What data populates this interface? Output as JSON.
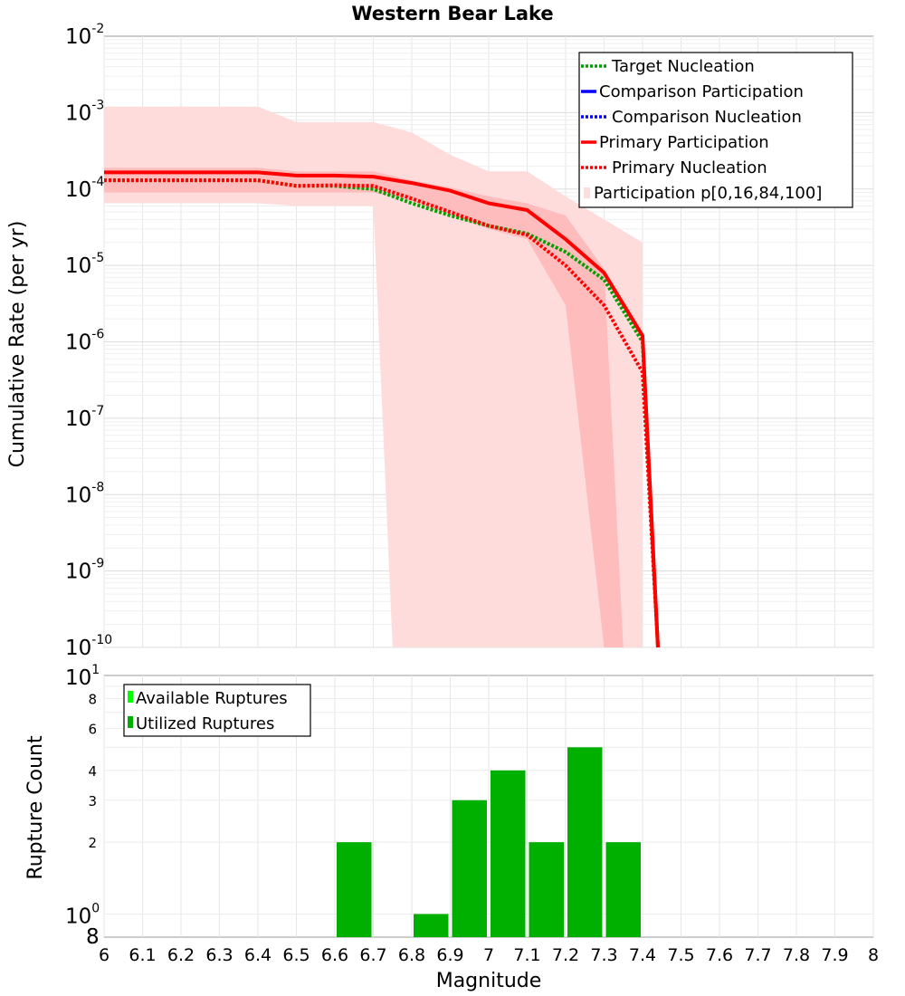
{
  "chart_data": [
    {
      "type": "line",
      "title": "Western Bear Lake",
      "xlabel": "Magnitude",
      "ylabel": "Cumulative Rate (per yr)",
      "yscale": "log",
      "xlim": [
        6,
        8
      ],
      "ylim": [
        1e-10,
        0.01
      ],
      "y_ticks": [
        {
          "base": "10",
          "exp": "-10"
        },
        {
          "base": "10",
          "exp": "-9"
        },
        {
          "base": "10",
          "exp": "-8"
        },
        {
          "base": "10",
          "exp": "-7"
        },
        {
          "base": "10",
          "exp": "-6"
        },
        {
          "base": "10",
          "exp": "-5"
        },
        {
          "base": "10",
          "exp": "-4"
        },
        {
          "base": "10",
          "exp": "-3"
        },
        {
          "base": "10",
          "exp": "-2"
        }
      ],
      "legend_position": "top-right",
      "legend": [
        "Target Nucleation",
        "Comparison Participation",
        "Comparison Nucleation",
        "Primary Participation",
        "Primary Nucleation",
        "Participation p[0,16,84,100]"
      ],
      "colors": {
        "target": "#00a000",
        "comparison": "#0000ff",
        "primary": "#ff0000",
        "band_outer": "#ffdcdc",
        "band_inner": "#ffbcbc"
      },
      "bands": {
        "outer": {
          "x": [
            6.0,
            6.4,
            6.5,
            6.7,
            6.8,
            6.9,
            7.0,
            7.1,
            7.2,
            7.3,
            7.4,
            7.4001
          ],
          "upper": [
            0.0012,
            0.0012,
            0.00075,
            0.00075,
            0.00055,
            0.00028,
            0.00017,
            0.00017,
            8e-05,
            4e-05,
            2e-05,
            1e-10
          ],
          "lower": [
            6.5e-05,
            6.5e-05,
            6e-05,
            6e-05,
            1e-10,
            1e-10,
            1e-10,
            1e-10,
            1e-10,
            1e-10,
            1e-10,
            1e-10
          ],
          "lower_drop_x": [
            6.7,
            6.75
          ]
        },
        "inner": {
          "x": [
            6.0,
            6.4,
            6.5,
            6.7,
            6.8,
            6.9,
            7.0,
            7.1,
            7.2,
            7.3,
            7.35
          ],
          "upper": [
            0.00019,
            0.00019,
            0.00017,
            0.00017,
            0.00013,
            0.000105,
            8e-05,
            6.5e-05,
            4.5e-05,
            9e-06,
            1e-10
          ],
          "lower": [
            9e-05,
            9e-05,
            9e-05,
            9e-05,
            7e-05,
            4.5e-05,
            3e-05,
            2.2e-05,
            3e-06,
            1e-10,
            1e-10
          ]
        }
      },
      "series": [
        {
          "name": "Target Nucleation",
          "style": "dotted",
          "color": "#00a000",
          "x": [
            6.0,
            6.1,
            6.2,
            6.3,
            6.4,
            6.5,
            6.6,
            6.7,
            6.8,
            6.9,
            7.0,
            7.1,
            7.2,
            7.3,
            7.4,
            7.44
          ],
          "y": [
            0.00013,
            0.00013,
            0.00013,
            0.00013,
            0.00013,
            0.00011,
            0.00011,
            0.0001,
            6.5e-05,
            4.5e-05,
            3.3e-05,
            2.6e-05,
            1.5e-05,
            6.5e-06,
            1e-06,
            1e-10
          ]
        },
        {
          "name": "Primary Participation",
          "style": "solid",
          "color": "#ff0000",
          "x": [
            6.0,
            6.1,
            6.2,
            6.3,
            6.4,
            6.5,
            6.6,
            6.7,
            6.8,
            6.9,
            7.0,
            7.1,
            7.2,
            7.3,
            7.4,
            7.44
          ],
          "y": [
            0.000165,
            0.000165,
            0.000165,
            0.000165,
            0.000165,
            0.00015,
            0.00015,
            0.000145,
            0.00012,
            9.5e-05,
            6.5e-05,
            5.3e-05,
            2.2e-05,
            8e-06,
            1.2e-06,
            1e-10
          ]
        },
        {
          "name": "Primary Nucleation",
          "style": "dotted",
          "color": "#ff0000",
          "x": [
            6.0,
            6.1,
            6.2,
            6.3,
            6.4,
            6.5,
            6.6,
            6.7,
            6.8,
            6.9,
            7.0,
            7.1,
            7.2,
            7.3,
            7.4,
            7.44
          ],
          "y": [
            0.00013,
            0.00013,
            0.00013,
            0.00013,
            0.00013,
            0.00011,
            0.000112,
            0.00011,
            7.5e-05,
            5e-05,
            3.3e-05,
            2.5e-05,
            1e-05,
            3e-06,
            4e-07,
            1e-10
          ]
        }
      ]
    },
    {
      "type": "bar",
      "xlabel": "Magnitude",
      "ylabel": "Rupture Count",
      "yscale": "log",
      "xlim": [
        6,
        8
      ],
      "ylim": [
        0.8,
        10
      ],
      "x_ticks": [
        "6",
        "6.1",
        "6.2",
        "6.3",
        "6.4",
        "6.5",
        "6.6",
        "6.7",
        "6.8",
        "6.9",
        "7",
        "7.1",
        "7.2",
        "7.3",
        "7.4",
        "7.5",
        "7.6",
        "7.7",
        "7.8",
        "7.9",
        "8"
      ],
      "y_ticks_small": [
        "2",
        "3",
        "4",
        "6",
        "8"
      ],
      "y_ticks_decade": [
        {
          "base": "10",
          "exp": "0"
        },
        {
          "base": "10",
          "exp": "1"
        }
      ],
      "y_bottom_label": "8",
      "legend_position": "top-left",
      "legend": [
        "Available Ruptures",
        "Utilized Ruptures"
      ],
      "colors": {
        "available": "#00ff00",
        "utilized": "#00b000"
      },
      "series": [
        {
          "name": "Utilized Ruptures",
          "x": [
            6.65,
            6.85,
            6.95,
            7.05,
            7.15,
            7.25,
            7.35
          ],
          "values": [
            2,
            1,
            3,
            4,
            2,
            5,
            2
          ]
        }
      ]
    }
  ]
}
